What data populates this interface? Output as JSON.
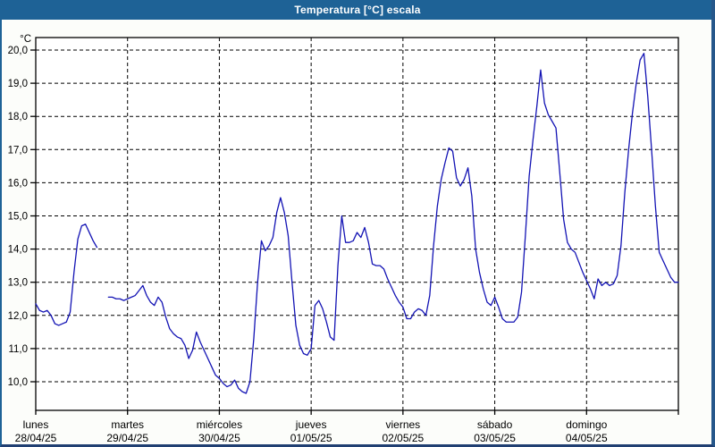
{
  "window": {
    "title": "Temperatura [°C] escala"
  },
  "colors": {
    "titlebar": "#1e6296",
    "frame_right": "#26578a",
    "frame_bottom": "#203f72",
    "plot_background": "#ffffff",
    "page_background": "#fcfdfa",
    "grid": "#000000",
    "line": "#1313b4",
    "text": "#000000",
    "title_text": "#ffffff"
  },
  "chart_data": {
    "type": "line",
    "title": "Temperatura [°C] escala",
    "grid": "dashed",
    "legend": "none",
    "y_axis": {
      "unit": "°C",
      "y_max": 20,
      "y_min": 10,
      "ylim": [
        9.15,
        20.38
      ],
      "tick_labels": [
        "20,0",
        "19,0",
        "18,0",
        "17,0",
        "16,0",
        "15,0",
        "14,0",
        "13,0",
        "12,0",
        "11,0",
        "10,0"
      ]
    },
    "x_axis": {
      "days": [
        {
          "name": "lunes",
          "date": "28/04/25"
        },
        {
          "name": "martes",
          "date": "29/04/25"
        },
        {
          "name": "miércoles",
          "date": "30/04/25"
        },
        {
          "name": "jueves",
          "date": "01/05/25"
        },
        {
          "name": "viernes",
          "date": "02/05/25"
        },
        {
          "name": "sábado",
          "date": "03/05/25"
        },
        {
          "name": "domingo",
          "date": "04/05/25"
        }
      ],
      "points_per_day": 24,
      "note": "hourly temperature readings; null = missing data gap on Monday afternoon"
    },
    "series": [
      {
        "name": "Temperatura",
        "color": "#1313b4",
        "values": [
          12.35,
          12.15,
          12.1,
          12.15,
          12.0,
          11.75,
          11.7,
          11.75,
          11.8,
          12.1,
          13.3,
          14.3,
          14.7,
          14.75,
          14.5,
          14.25,
          14.05,
          null,
          null,
          12.55,
          12.55,
          12.5,
          12.5,
          12.45,
          12.5,
          12.55,
          12.6,
          12.75,
          12.9,
          12.6,
          12.4,
          12.3,
          12.55,
          12.4,
          11.95,
          11.6,
          11.45,
          11.35,
          11.3,
          11.1,
          10.7,
          10.95,
          11.5,
          11.2,
          10.95,
          10.7,
          10.45,
          10.2,
          10.1,
          9.95,
          9.85,
          9.9,
          10.05,
          9.8,
          9.7,
          9.65,
          10.0,
          11.3,
          13.0,
          14.25,
          13.95,
          14.1,
          14.35,
          15.1,
          15.55,
          15.1,
          14.4,
          13.0,
          11.7,
          11.1,
          10.85,
          10.8,
          11.0,
          12.3,
          12.45,
          12.2,
          11.8,
          11.35,
          11.25,
          13.5,
          15.0,
          14.2,
          14.2,
          14.25,
          14.5,
          14.35,
          14.65,
          14.2,
          13.55,
          13.5,
          13.5,
          13.4,
          13.1,
          12.85,
          12.6,
          12.4,
          12.25,
          11.9,
          11.9,
          12.1,
          12.2,
          12.15,
          12.0,
          12.6,
          14.1,
          15.3,
          16.1,
          16.6,
          17.05,
          16.95,
          16.15,
          15.9,
          16.1,
          16.45,
          15.6,
          14.0,
          13.3,
          12.8,
          12.4,
          12.3,
          12.55,
          12.25,
          11.9,
          11.8,
          11.8,
          11.8,
          11.95,
          12.7,
          14.4,
          16.2,
          17.3,
          18.3,
          19.4,
          18.4,
          18.05,
          17.85,
          17.65,
          16.3,
          14.9,
          14.2,
          14.0,
          13.9,
          13.6,
          13.3,
          13.05,
          12.8,
          12.5,
          13.1,
          12.9,
          13.0,
          12.9,
          12.95,
          13.2,
          14.1,
          15.7,
          17.0,
          18.1,
          19.0,
          19.7,
          19.9,
          18.6,
          17.0,
          15.3,
          13.9,
          13.65,
          13.4,
          13.15,
          13.0,
          13.0
        ]
      }
    ]
  }
}
